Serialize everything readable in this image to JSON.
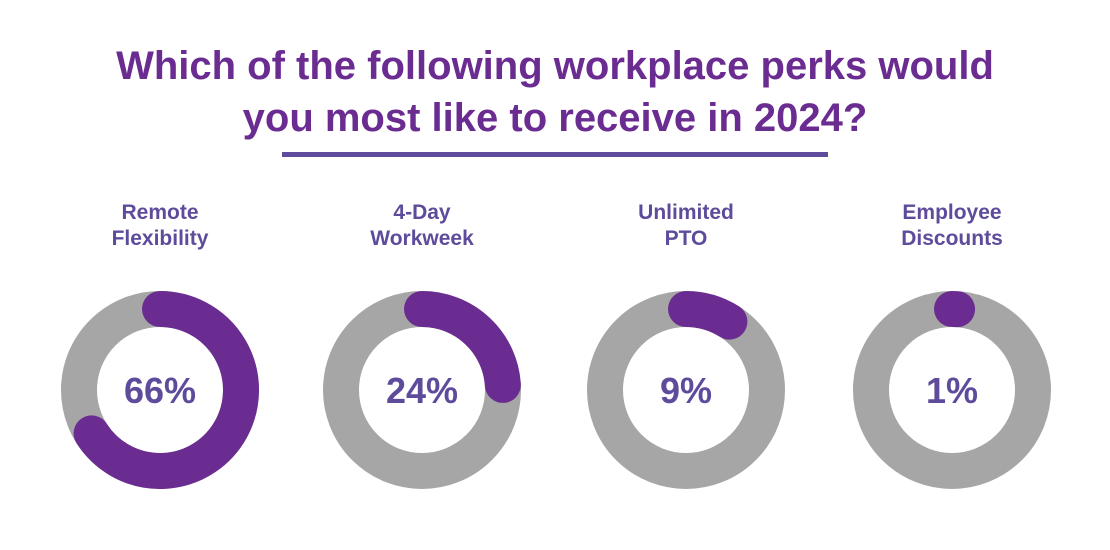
{
  "title_lines": [
    "Which of the following workplace perks would",
    "you most like to receive in 2024?"
  ],
  "colors": {
    "title": "#6b2c91",
    "label": "#5f4b9b",
    "ring_track": "#a6a6a6",
    "ring_fill": "#6b2c91",
    "rule": "#5f4b9b"
  },
  "chart_data": {
    "type": "pie",
    "style": "donut-per-category",
    "title": "Which of the following workplace perks would you most like to receive in 2024?",
    "categories": [
      "Remote Flexibility",
      "4-Day Workweek",
      "Unlimited PTO",
      "Employee Discounts"
    ],
    "values": [
      66,
      24,
      9,
      1
    ],
    "value_labels": [
      "66%",
      "24%",
      "9%",
      "1%"
    ]
  },
  "perks": [
    {
      "label_lines": [
        "Remote",
        "Flexibility"
      ],
      "value": 66,
      "value_label": "66%"
    },
    {
      "label_lines": [
        "4-Day",
        "Workweek"
      ],
      "value": 24,
      "value_label": "24%"
    },
    {
      "label_lines": [
        "Unlimited",
        "PTO"
      ],
      "value": 9,
      "value_label": "9%"
    },
    {
      "label_lines": [
        "Employee",
        "Discounts"
      ],
      "value": 1,
      "value_label": "1%"
    }
  ]
}
